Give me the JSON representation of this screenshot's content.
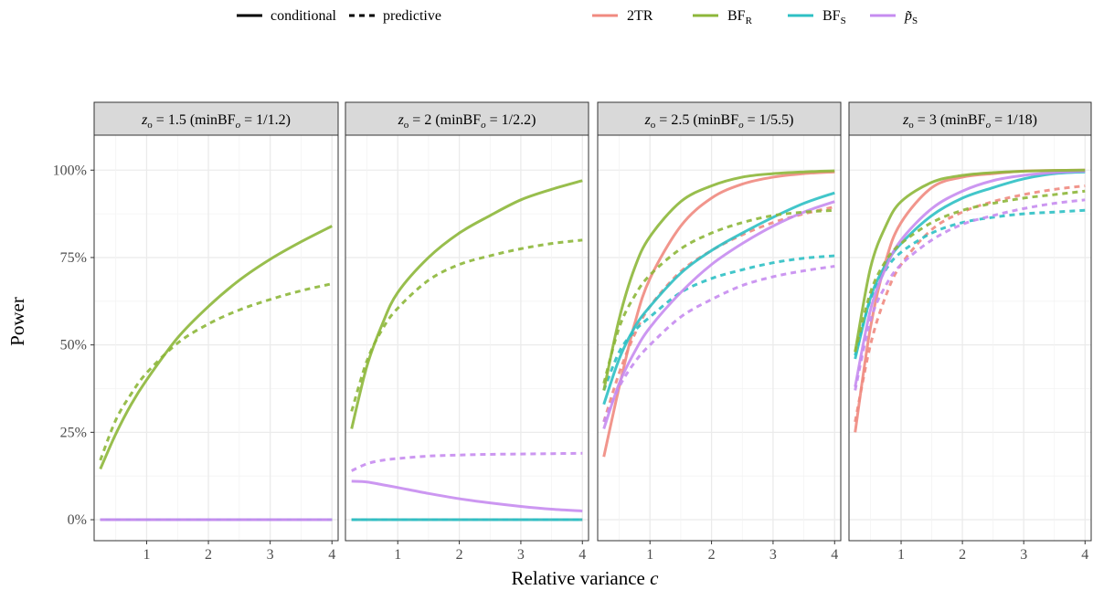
{
  "chart_data": {
    "type": "line",
    "xlabel": "Relative variance c",
    "ylabel": "Power",
    "xlim": [
      0.15,
      4.1
    ],
    "ylim": [
      -0.06,
      1.1
    ],
    "x_ticks": [
      1,
      2,
      3,
      4
    ],
    "y_ticks": [
      0,
      0.25,
      0.5,
      0.75,
      1.0
    ],
    "y_tick_labels": [
      "0%",
      "25%",
      "50%",
      "75%",
      "100%"
    ],
    "grid": true,
    "legend": {
      "position": "top",
      "linetypes": [
        {
          "label": "conditional",
          "dash": "solid"
        },
        {
          "label": "predictive",
          "dash": "dashed"
        }
      ],
      "methods": [
        {
          "label": "2TR",
          "color": "#F08A80"
        },
        {
          "label": "BFR",
          "color": "#8DB73A"
        },
        {
          "label": "BFS",
          "color": "#2EC0C4"
        },
        {
          "label": "p̃S",
          "color": "#C68CF0"
        }
      ]
    },
    "x": [
      0.25,
      0.5,
      0.75,
      1.0,
      1.5,
      2.0,
      2.5,
      3.0,
      3.5,
      4.0
    ],
    "panels": [
      {
        "title": "z_o = 1.5 (minBF_o = 1/1.2)",
        "series": [
          {
            "method": "2TR",
            "type": "conditional",
            "values": [
              0,
              0,
              0,
              0,
              0,
              0,
              0,
              0,
              0,
              0
            ]
          },
          {
            "method": "2TR",
            "type": "predictive",
            "values": [
              0,
              0,
              0,
              0,
              0,
              0,
              0,
              0,
              0,
              0
            ]
          },
          {
            "method": "BFS",
            "type": "conditional",
            "values": [
              0,
              0,
              0,
              0,
              0,
              0,
              0,
              0,
              0,
              0
            ]
          },
          {
            "method": "BFS",
            "type": "predictive",
            "values": [
              0,
              0,
              0,
              0,
              0,
              0,
              0,
              0,
              0,
              0
            ]
          },
          {
            "method": "p̃S",
            "type": "conditional",
            "values": [
              0,
              0,
              0,
              0,
              0,
              0,
              0,
              0,
              0,
              0
            ]
          },
          {
            "method": "p̃S",
            "type": "predictive",
            "values": [
              0,
              0,
              0,
              0,
              0,
              0,
              0,
              0,
              0,
              0
            ]
          },
          {
            "method": "BFR",
            "type": "conditional",
            "values": [
              0.145,
              0.245,
              0.33,
              0.4,
              0.52,
              0.61,
              0.685,
              0.745,
              0.795,
              0.84
            ]
          },
          {
            "method": "BFR",
            "type": "predictive",
            "values": [
              0.17,
              0.285,
              0.36,
              0.42,
              0.505,
              0.56,
              0.6,
              0.63,
              0.655,
              0.675
            ]
          }
        ]
      },
      {
        "title": "z_o = 2 (minBF_o = 1/2.2)",
        "series": [
          {
            "method": "2TR",
            "type": "conditional",
            "values": [
              0,
              0,
              0,
              0,
              0,
              0,
              0,
              0,
              0,
              0
            ]
          },
          {
            "method": "2TR",
            "type": "predictive",
            "values": [
              0,
              0,
              0,
              0,
              0,
              0,
              0,
              0,
              0,
              0
            ]
          },
          {
            "method": "BFS",
            "type": "conditional",
            "values": [
              0,
              0,
              0,
              0,
              0,
              0,
              0,
              0,
              0,
              0
            ]
          },
          {
            "method": "BFS",
            "type": "predictive",
            "values": [
              0,
              0,
              0,
              0,
              0,
              0,
              0,
              0,
              0,
              0
            ]
          },
          {
            "method": "p̃S",
            "type": "conditional",
            "values": [
              0.11,
              0.108,
              0.1,
              0.092,
              0.075,
              0.06,
              0.048,
              0.038,
              0.03,
              0.025
            ]
          },
          {
            "method": "p̃S",
            "type": "predictive",
            "values": [
              0.14,
              0.16,
              0.17,
              0.175,
              0.182,
              0.185,
              0.187,
              0.188,
              0.189,
              0.19
            ]
          },
          {
            "method": "BFR",
            "type": "conditional",
            "values": [
              0.26,
              0.44,
              0.56,
              0.65,
              0.75,
              0.82,
              0.87,
              0.915,
              0.945,
              0.97
            ]
          },
          {
            "method": "BFR",
            "type": "predictive",
            "values": [
              0.31,
              0.455,
              0.545,
              0.605,
              0.685,
              0.73,
              0.755,
              0.775,
              0.79,
              0.8
            ]
          }
        ]
      },
      {
        "title": "z_o = 2.5 (minBF_o = 1/5.5)",
        "series": [
          {
            "method": "2TR",
            "type": "conditional",
            "values": [
              0.18,
              0.38,
              0.56,
              0.69,
              0.84,
              0.92,
              0.96,
              0.98,
              0.99,
              0.995
            ]
          },
          {
            "method": "2TR",
            "type": "predictive",
            "values": [
              0.28,
              0.42,
              0.53,
              0.61,
              0.71,
              0.77,
              0.815,
              0.85,
              0.875,
              0.895
            ]
          },
          {
            "method": "BFS",
            "type": "conditional",
            "values": [
              0.33,
              0.46,
              0.55,
              0.61,
              0.705,
              0.77,
              0.82,
              0.865,
              0.905,
              0.935
            ]
          },
          {
            "method": "BFS",
            "type": "predictive",
            "values": [
              0.37,
              0.48,
              0.54,
              0.58,
              0.65,
              0.69,
              0.715,
              0.735,
              0.748,
              0.755
            ]
          },
          {
            "method": "p̃S",
            "type": "conditional",
            "values": [
              0.26,
              0.39,
              0.48,
              0.55,
              0.65,
              0.73,
              0.79,
              0.84,
              0.88,
              0.91
            ]
          },
          {
            "method": "p̃S",
            "type": "predictive",
            "values": [
              0.28,
              0.38,
              0.45,
              0.5,
              0.58,
              0.63,
              0.67,
              0.695,
              0.712,
              0.725
            ]
          },
          {
            "method": "BFR",
            "type": "conditional",
            "values": [
              0.37,
              0.575,
              0.72,
              0.81,
              0.91,
              0.955,
              0.98,
              0.99,
              0.995,
              0.998
            ]
          },
          {
            "method": "BFR",
            "type": "predictive",
            "values": [
              0.39,
              0.55,
              0.64,
              0.7,
              0.775,
              0.82,
              0.85,
              0.87,
              0.88,
              0.885
            ]
          }
        ]
      },
      {
        "title": "z_o = 3 (minBF_o = 1/18)",
        "series": [
          {
            "method": "2TR",
            "type": "conditional",
            "values": [
              0.25,
              0.55,
              0.74,
              0.85,
              0.95,
              0.98,
              0.99,
              0.997,
              0.999,
              1.0
            ]
          },
          {
            "method": "2TR",
            "type": "predictive",
            "values": [
              0.28,
              0.5,
              0.64,
              0.73,
              0.83,
              0.88,
              0.91,
              0.93,
              0.945,
              0.955
            ]
          },
          {
            "method": "BFS",
            "type": "conditional",
            "values": [
              0.46,
              0.635,
              0.73,
              0.79,
              0.87,
              0.92,
              0.95,
              0.975,
              0.99,
              0.995
            ]
          },
          {
            "method": "BFS",
            "type": "predictive",
            "values": [
              0.47,
              0.63,
              0.715,
              0.765,
              0.82,
              0.85,
              0.865,
              0.875,
              0.88,
              0.885
            ]
          },
          {
            "method": "p̃S",
            "type": "conditional",
            "values": [
              0.38,
              0.6,
              0.72,
              0.8,
              0.89,
              0.94,
              0.97,
              0.985,
              0.993,
              0.997
            ]
          },
          {
            "method": "p̃S",
            "type": "predictive",
            "values": [
              0.37,
              0.57,
              0.67,
              0.73,
              0.8,
              0.845,
              0.87,
              0.89,
              0.905,
              0.915
            ]
          },
          {
            "method": "BFR",
            "type": "conditional",
            "values": [
              0.48,
              0.72,
              0.84,
              0.91,
              0.965,
              0.985,
              0.993,
              0.997,
              0.999,
              1.0
            ]
          },
          {
            "method": "BFR",
            "type": "predictive",
            "values": [
              0.48,
              0.65,
              0.74,
              0.79,
              0.85,
              0.885,
              0.905,
              0.92,
              0.93,
              0.94
            ]
          }
        ]
      }
    ]
  }
}
